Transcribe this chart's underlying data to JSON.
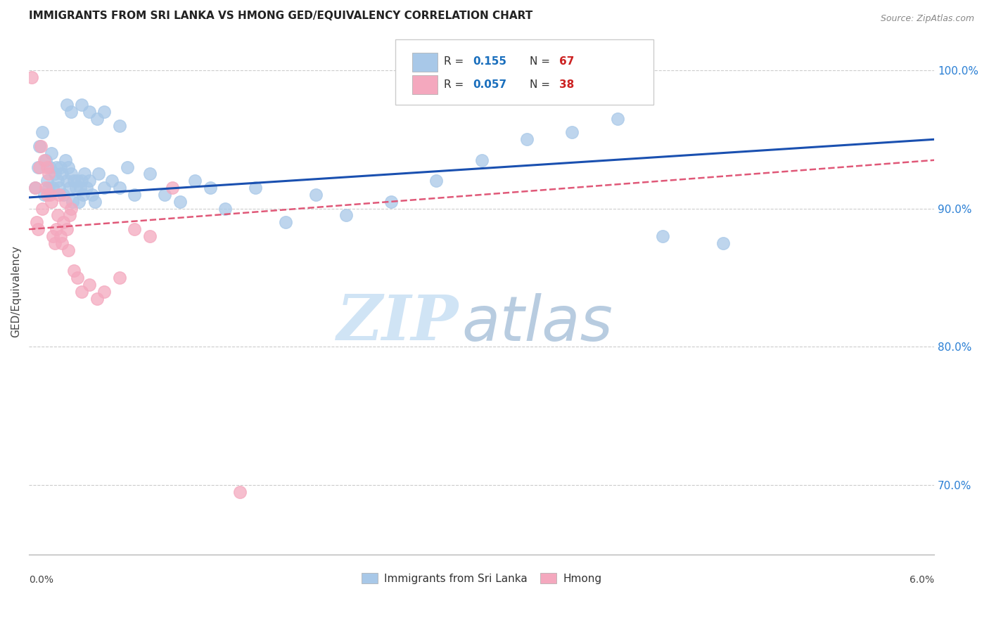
{
  "title": "IMMIGRANTS FROM SRI LANKA VS HMONG GED/EQUIVALENCY CORRELATION CHART",
  "source": "Source: ZipAtlas.com",
  "ylabel": "GED/Equivalency",
  "xmin": 0.0,
  "xmax": 6.0,
  "ymin": 65.0,
  "ymax": 103.0,
  "yticks": [
    70.0,
    80.0,
    90.0,
    100.0
  ],
  "ytick_labels": [
    "70.0%",
    "80.0%",
    "90.0%",
    "100.0%"
  ],
  "sri_lanka_color": "#a8c8e8",
  "hmong_color": "#f4a8be",
  "sri_lanka_line_color": "#1a50b0",
  "hmong_line_color": "#e05878",
  "watermark_zip_color": "#d0e4f5",
  "watermark_atlas_color": "#b8cce0",
  "sri_lanka_x": [
    0.04,
    0.06,
    0.07,
    0.09,
    0.1,
    0.11,
    0.12,
    0.13,
    0.14,
    0.15,
    0.16,
    0.17,
    0.18,
    0.19,
    0.2,
    0.21,
    0.22,
    0.23,
    0.24,
    0.25,
    0.26,
    0.27,
    0.28,
    0.29,
    0.3,
    0.31,
    0.32,
    0.33,
    0.34,
    0.35,
    0.36,
    0.37,
    0.38,
    0.4,
    0.42,
    0.44,
    0.46,
    0.5,
    0.55,
    0.6,
    0.65,
    0.7,
    0.8,
    0.9,
    1.0,
    1.1,
    1.2,
    1.3,
    1.5,
    1.7,
    1.9,
    2.1,
    2.4,
    2.7,
    3.0,
    3.3,
    3.6,
    3.9,
    4.2,
    4.6,
    0.25,
    0.28,
    0.35,
    0.4,
    0.45,
    0.5,
    0.6
  ],
  "sri_lanka_y": [
    91.5,
    93.0,
    94.5,
    95.5,
    91.0,
    93.5,
    92.0,
    91.5,
    93.0,
    94.0,
    91.5,
    92.5,
    93.0,
    92.0,
    91.5,
    93.0,
    92.5,
    91.0,
    93.5,
    92.0,
    93.0,
    91.5,
    92.5,
    90.5,
    92.0,
    91.5,
    92.0,
    90.5,
    91.5,
    92.0,
    91.0,
    92.5,
    91.5,
    92.0,
    91.0,
    90.5,
    92.5,
    91.5,
    92.0,
    91.5,
    93.0,
    91.0,
    92.5,
    91.0,
    90.5,
    92.0,
    91.5,
    90.0,
    91.5,
    89.0,
    91.0,
    89.5,
    90.5,
    92.0,
    93.5,
    95.0,
    95.5,
    96.5,
    88.0,
    87.5,
    97.5,
    97.0,
    97.5,
    97.0,
    96.5,
    97.0,
    96.0
  ],
  "hmong_x": [
    0.02,
    0.04,
    0.05,
    0.06,
    0.07,
    0.08,
    0.09,
    0.1,
    0.11,
    0.12,
    0.13,
    0.14,
    0.15,
    0.16,
    0.17,
    0.18,
    0.19,
    0.2,
    0.21,
    0.22,
    0.23,
    0.24,
    0.25,
    0.26,
    0.27,
    0.28,
    0.3,
    0.32,
    0.35,
    0.4,
    0.45,
    0.5,
    0.6,
    0.7,
    0.8,
    0.95,
    1.4,
    0.12
  ],
  "hmong_y": [
    99.5,
    91.5,
    89.0,
    88.5,
    93.0,
    94.5,
    90.0,
    93.5,
    91.5,
    91.0,
    92.5,
    91.0,
    90.5,
    88.0,
    87.5,
    88.5,
    89.5,
    91.0,
    88.0,
    87.5,
    89.0,
    90.5,
    88.5,
    87.0,
    89.5,
    90.0,
    85.5,
    85.0,
    84.0,
    84.5,
    83.5,
    84.0,
    85.0,
    88.5,
    88.0,
    91.5,
    69.5,
    93.0
  ],
  "sri_lanka_trend_y0": 90.8,
  "sri_lanka_trend_y1": 95.0,
  "hmong_trend_y0": 88.5,
  "hmong_trend_y1": 93.5
}
